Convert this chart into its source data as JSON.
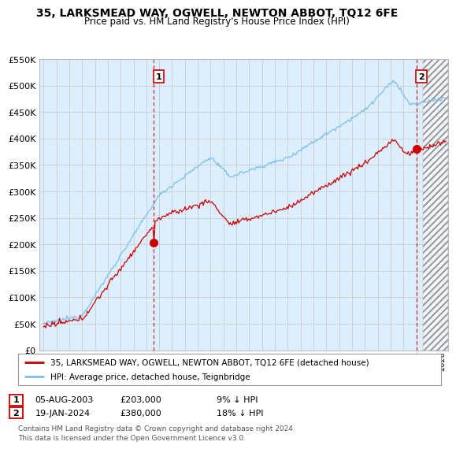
{
  "title": "35, LARKSMEAD WAY, OGWELL, NEWTON ABBOT, TQ12 6FE",
  "subtitle": "Price paid vs. HM Land Registry's House Price Index (HPI)",
  "legend_line1": "35, LARKSMEAD WAY, OGWELL, NEWTON ABBOT, TQ12 6FE (detached house)",
  "legend_line2": "HPI: Average price, detached house, Teignbridge",
  "annotation1_date": "05-AUG-2003",
  "annotation1_price": "£203,000",
  "annotation1_hpi": "9% ↓ HPI",
  "annotation2_date": "19-JAN-2024",
  "annotation2_price": "£380,000",
  "annotation2_hpi": "18% ↓ HPI",
  "footer": "Contains HM Land Registry data © Crown copyright and database right 2024.\nThis data is licensed under the Open Government Licence v3.0.",
  "hpi_color": "#7bbfea",
  "price_color": "#cc0000",
  "vline_color": "#cc0000",
  "grid_color": "#cccccc",
  "background_color": "#ffffff",
  "plot_bg_color": "#ddeeff",
  "ylim": [
    0,
    550000
  ],
  "yticks": [
    0,
    50000,
    100000,
    150000,
    200000,
    250000,
    300000,
    350000,
    400000,
    450000,
    500000,
    550000
  ],
  "sale1_x": 2003.58,
  "sale1_y": 203000,
  "sale2_x": 2024.05,
  "sale2_y": 380000,
  "xmin": 1994.7,
  "xmax": 2026.5,
  "hatch_start": 2024.5
}
